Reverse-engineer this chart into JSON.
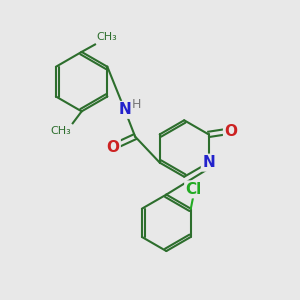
{
  "bg_color": "#e8e8e8",
  "bond_color": "#2d6e2d",
  "n_color": "#2222cc",
  "o_color": "#cc2222",
  "cl_color": "#22aa22",
  "h_color": "#777777",
  "bond_width": 1.5,
  "font_size": 11,
  "fig_size": [
    3.0,
    3.0
  ],
  "dpi": 100,
  "xlim": [
    0,
    10
  ],
  "ylim": [
    0,
    10
  ]
}
